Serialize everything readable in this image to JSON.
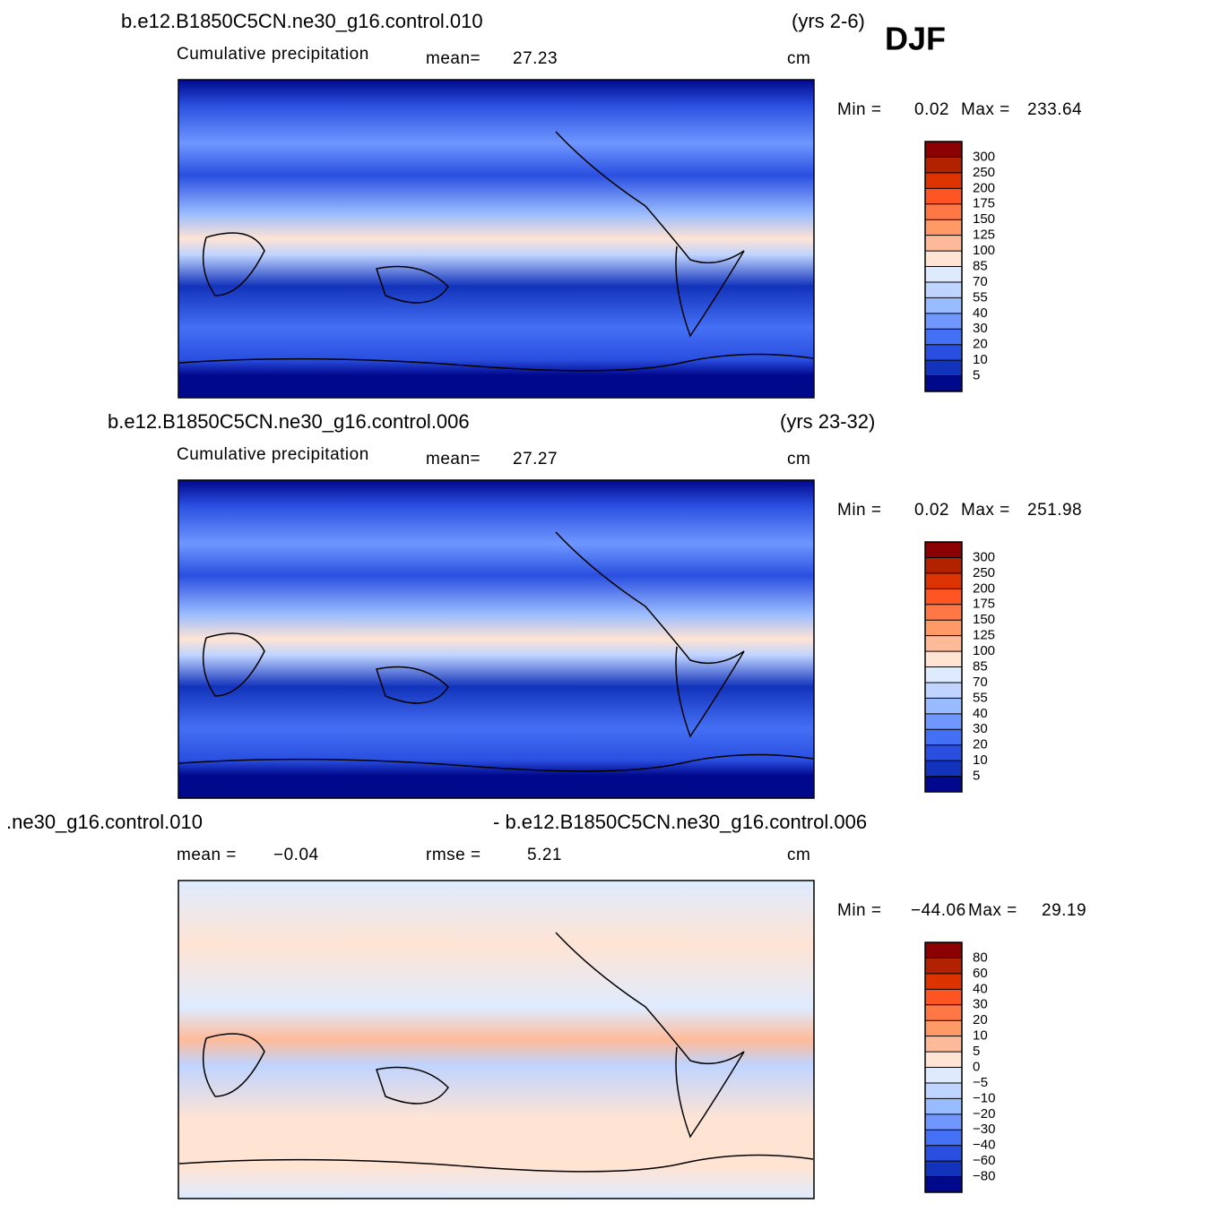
{
  "season": "DJF",
  "panels": [
    {
      "case": "b.e12.B1850C5CN.ne30_g16.control.010",
      "years": "(yrs 2-6)",
      "variable": "Cumulative precipitation",
      "mean_label": "mean=",
      "mean": 27.23,
      "units": "cm",
      "min_label": "Min =",
      "min": 0.02,
      "max_label": "Max =",
      "max": 233.64,
      "colorbar": {
        "levels": [
          300,
          250,
          200,
          175,
          150,
          125,
          100,
          85,
          70,
          55,
          40,
          30,
          20,
          10,
          5
        ],
        "colors": [
          "#8b0000",
          "#b22200",
          "#dd3300",
          "#ff5522",
          "#ff7744",
          "#ff9966",
          "#ffbb99",
          "#ffe4d4",
          "#deebff",
          "#bfd4ff",
          "#99bbff",
          "#6f97ff",
          "#4470f5",
          "#2a4fe0",
          "#1233bb",
          "#00088c"
        ]
      }
    },
    {
      "case": "b.e12.B1850C5CN.ne30_g16.control.006",
      "years": "(yrs 23-32)",
      "variable": "Cumulative precipitation",
      "mean_label": "mean=",
      "mean": 27.27,
      "units": "cm",
      "min_label": "Min =",
      "min": 0.02,
      "max_label": "Max =",
      "max": 251.98,
      "colorbar": {
        "levels": [
          300,
          250,
          200,
          175,
          150,
          125,
          100,
          85,
          70,
          55,
          40,
          30,
          20,
          10,
          5
        ],
        "colors": [
          "#8b0000",
          "#b22200",
          "#dd3300",
          "#ff5522",
          "#ff7744",
          "#ff9966",
          "#ffbb99",
          "#ffe4d4",
          "#deebff",
          "#bfd4ff",
          "#99bbff",
          "#6f97ff",
          "#4470f5",
          "#2a4fe0",
          "#1233bb",
          "#00088c"
        ]
      }
    },
    {
      "case_left": ".ne30_g16.control.010",
      "case_right": "- b.e12.B1850C5CN.ne30_g16.control.006",
      "mean_label": "mean =",
      "mean": {
        "value": -0.04,
        "label": "−0.04"
      },
      "rmse_label": "rmse =",
      "rmse": 5.21,
      "units": "cm",
      "min_label": "Min =",
      "min": {
        "value": -44.06,
        "label": "−44.06"
      },
      "max_label": "Max =",
      "max": 29.19,
      "colorbar": {
        "levels": [
          80,
          60,
          40,
          30,
          20,
          10,
          5,
          0,
          {
            "value": -5,
            "label": "−5"
          },
          {
            "value": -10,
            "label": "−10"
          },
          {
            "value": -20,
            "label": "−20"
          },
          {
            "value": -30,
            "label": "−30"
          },
          {
            "value": -40,
            "label": "−40"
          },
          {
            "value": -60,
            "label": "−60"
          },
          {
            "value": -80,
            "label": "−80"
          }
        ],
        "colors": [
          "#8b0000",
          "#b22200",
          "#dd3300",
          "#ff5522",
          "#ff7744",
          "#ff9966",
          "#ffbb99",
          "#ffe4d4",
          "#deebff",
          "#bfd4ff",
          "#99bbff",
          "#6f97ff",
          "#4470f5",
          "#2a4fe0",
          "#1233bb",
          "#00088c"
        ]
      }
    }
  ]
}
